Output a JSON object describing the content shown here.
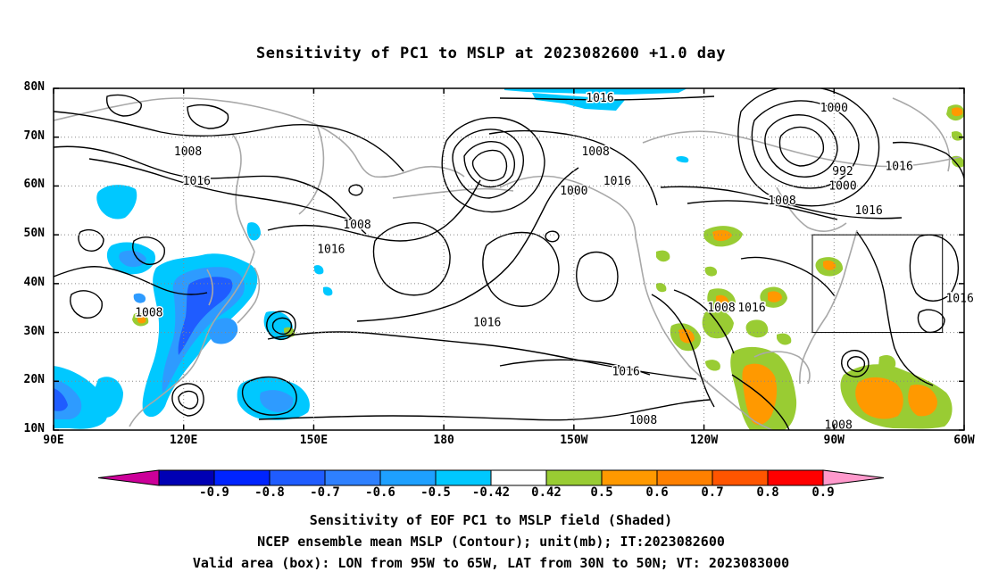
{
  "title": "Sensitivity of PC1 to MSLP at 2023082600 +1.0 day",
  "map": {
    "lon_range": [
      90,
      300
    ],
    "lat_range": [
      10,
      80
    ],
    "lat_ticks": [
      {
        "value": 80,
        "label": "80N"
      },
      {
        "value": 70,
        "label": "70N"
      },
      {
        "value": 60,
        "label": "60N"
      },
      {
        "value": 50,
        "label": "50N"
      },
      {
        "value": 40,
        "label": "40N"
      },
      {
        "value": 30,
        "label": "30N"
      },
      {
        "value": 20,
        "label": "20N"
      },
      {
        "value": 10,
        "label": "10N"
      }
    ],
    "lon_ticks": [
      {
        "value": 90,
        "label": "90E"
      },
      {
        "value": 120,
        "label": "120E"
      },
      {
        "value": 150,
        "label": "150E"
      },
      {
        "value": 180,
        "label": "180"
      },
      {
        "value": 210,
        "label": "150W"
      },
      {
        "value": 240,
        "label": "120W"
      },
      {
        "value": 270,
        "label": "90W"
      },
      {
        "value": 300,
        "label": "60W"
      }
    ],
    "valid_box": {
      "lon_min": 265,
      "lon_max": 295,
      "lat_min": 30,
      "lat_max": 50
    },
    "grid": true
  },
  "colors": {
    "contour": "#000000",
    "coast": "#a8a8a8",
    "neg_light": "#00c8ff",
    "neg_mid": "#2e9bff",
    "neg_dark": "#1f5cff",
    "pos_light": "#99cc33",
    "pos_mid": "#ff9900",
    "pos_dark": "#ff6600"
  },
  "chart_data": {
    "type": "contour",
    "contour_labels": [
      {
        "lon": 121,
        "lat": 67,
        "text": "1008"
      },
      {
        "lon": 123,
        "lat": 61,
        "text": "1016"
      },
      {
        "lon": 160,
        "lat": 52,
        "text": "1008"
      },
      {
        "lon": 154,
        "lat": 47,
        "text": "1016"
      },
      {
        "lon": 112,
        "lat": 34,
        "text": "1008"
      },
      {
        "lon": 190,
        "lat": 32,
        "text": "1016"
      },
      {
        "lon": 216,
        "lat": 78,
        "text": "1016"
      },
      {
        "lon": 215,
        "lat": 67,
        "text": "1008"
      },
      {
        "lon": 210,
        "lat": 59,
        "text": "1000"
      },
      {
        "lon": 220,
        "lat": 61,
        "text": "1016"
      },
      {
        "lon": 222,
        "lat": 22,
        "text": "1016"
      },
      {
        "lon": 226,
        "lat": 12,
        "text": "1008"
      },
      {
        "lon": 270,
        "lat": 76,
        "text": "1000"
      },
      {
        "lon": 272,
        "lat": 63,
        "text": "992"
      },
      {
        "lon": 272,
        "lat": 60,
        "text": "1000"
      },
      {
        "lon": 285,
        "lat": 64,
        "text": "1016"
      },
      {
        "lon": 278,
        "lat": 55,
        "text": "1016"
      },
      {
        "lon": 258,
        "lat": 57,
        "text": "1008"
      },
      {
        "lon": 244,
        "lat": 35,
        "text": "1008"
      },
      {
        "lon": 251,
        "lat": 35,
        "text": "1016"
      },
      {
        "lon": 301,
        "lat": 37,
        "text": "1016"
      },
      {
        "lon": 271,
        "lat": 11,
        "text": "1008"
      }
    ]
  },
  "colorbar": {
    "labels": [
      "-0.9",
      "-0.8",
      "-0.7",
      "-0.6",
      "-0.5",
      "-0.42",
      "0.42",
      "0.5",
      "0.6",
      "0.7",
      "0.8",
      "0.9"
    ],
    "colors": [
      "#0000b4",
      "#0024ff",
      "#1f5cff",
      "#2e80ff",
      "#1ea0ff",
      "#00c8ff",
      "#ffffff",
      "#99cc33",
      "#ff9900",
      "#ff8000",
      "#ff5500",
      "#ff0000"
    ],
    "left_triangle": "#cc0099",
    "right_triangle": "#ff99cc"
  },
  "captions": [
    "Sensitivity of EOF PC1 to MSLP field (Shaded)",
    "NCEP ensemble mean MSLP (Contour); unit(mb); IT:2023082600",
    "Valid area (box): LON from 95W to 65W, LAT from 30N to 50N; VT: 2023083000"
  ]
}
